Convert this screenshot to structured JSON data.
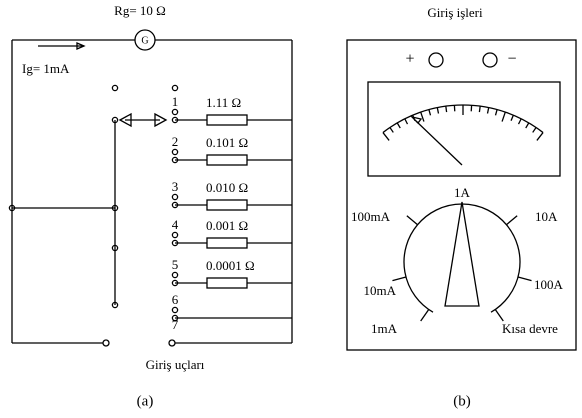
{
  "a": {
    "rg_label": "Rg= 10 Ω",
    "galvanometer": "G",
    "ig_label": "Ig= 1mA",
    "positions": [
      "1",
      "2",
      "3",
      "4",
      "5",
      "6",
      "7"
    ],
    "resistors": [
      "1.11 Ω",
      "0.101 Ω",
      "0.010 Ω",
      "0.001 Ω",
      "0.0001 Ω"
    ],
    "terminals_label": "Giriş uçları",
    "caption": "(a)"
  },
  "b": {
    "title": "Giriş işleri",
    "plus": "+",
    "minus": "−",
    "ranges": [
      "1A",
      "100mA",
      "10A",
      "10mA",
      "100A",
      "1mA",
      "Kısa devre"
    ],
    "caption": "(b)"
  }
}
